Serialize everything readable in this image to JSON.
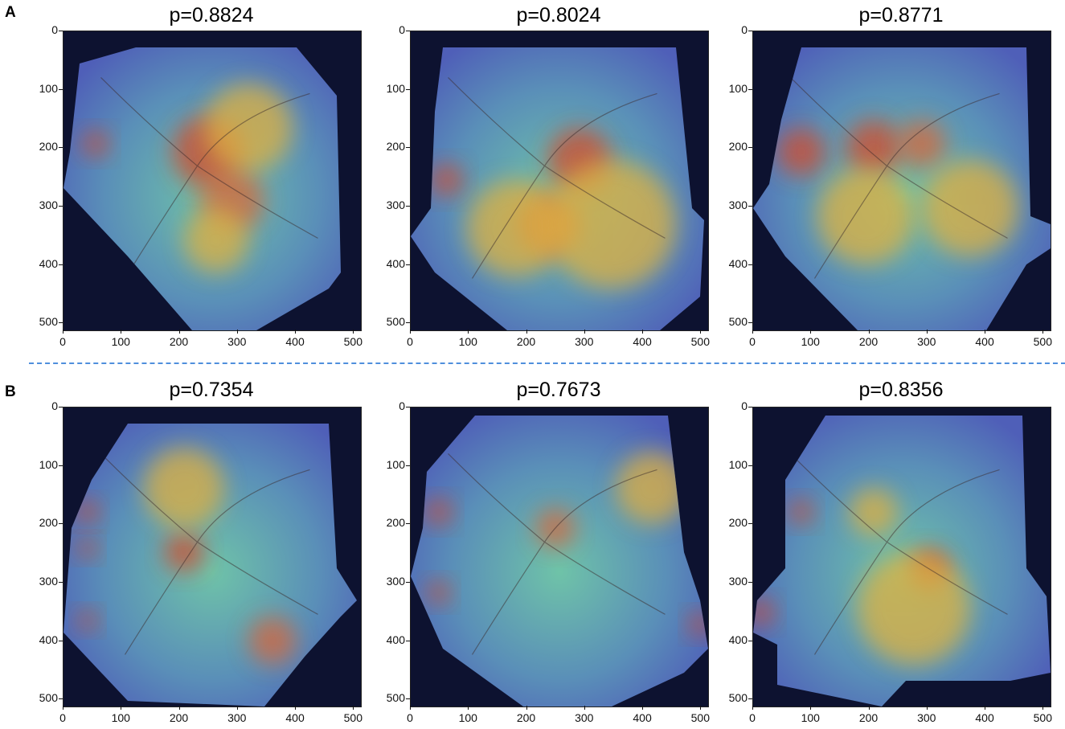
{
  "sections": [
    {
      "label": "A",
      "panels": [
        {
          "title": "p=0.8824",
          "shape": "a1"
        },
        {
          "title": "p=0.8024",
          "shape": "a2"
        },
        {
          "title": "p=0.8771",
          "shape": "a3"
        }
      ]
    },
    {
      "label": "B",
      "panels": [
        {
          "title": "p=0.7354",
          "shape": "b1"
        },
        {
          "title": "p=0.7673",
          "shape": "b2"
        },
        {
          "title": "p=0.8356",
          "shape": "b3"
        }
      ]
    }
  ],
  "axes": {
    "y_ticks": [
      "0",
      "100",
      "200",
      "300",
      "400",
      "500"
    ],
    "x_ticks": [
      "0",
      "100",
      "200",
      "300",
      "400",
      "500"
    ]
  },
  "colors": {
    "background": "#0d1230",
    "heat_low": "#4f5fb8",
    "heat_mid": "#6fc3a8",
    "heat_high": "#e0b040",
    "heat_hot": "#d44a2a",
    "divider": "#4f8fdc"
  }
}
